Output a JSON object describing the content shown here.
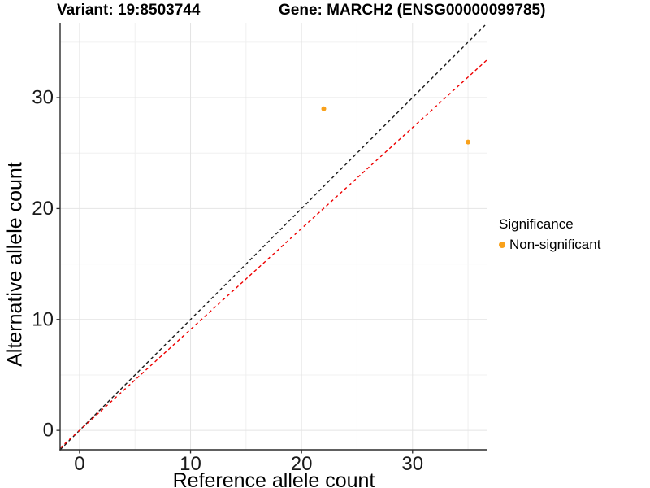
{
  "header": {
    "variant_title": "Variant: 19:8503744",
    "gene_title": "Gene: MARCH2 (ENSG00000099785)"
  },
  "axes": {
    "x_label": "Reference allele count",
    "y_label": "Alternative allele count"
  },
  "legend": {
    "title": "Significance",
    "items": [
      {
        "label": "Non-significant",
        "color": "#F9A11B"
      }
    ]
  },
  "chart_data": {
    "type": "scatter",
    "title": "Variant: 19:8503744 | Gene: MARCH2 (ENSG00000099785)",
    "xlabel": "Reference allele count",
    "ylabel": "Alternative allele count",
    "xlim": [
      -1.75,
      36.75
    ],
    "ylim": [
      -1.75,
      36.75
    ],
    "x_major_ticks": [
      0,
      10,
      20,
      30
    ],
    "y_major_ticks": [
      0,
      10,
      20,
      30
    ],
    "minor_ticks": [
      5,
      15,
      25,
      35
    ],
    "grid": true,
    "legend_position": "right",
    "series": [
      {
        "name": "Non-significant",
        "color": "#F9A11B",
        "points": [
          {
            "x": 22,
            "y": 29
          },
          {
            "x": 35,
            "y": 26
          }
        ]
      }
    ],
    "reference_lines": [
      {
        "name": "identity-line",
        "slope": 1,
        "intercept": 0,
        "color": "#1A1A1A",
        "style": "dashed"
      },
      {
        "name": "expected-ratio-line",
        "slope": 0.91,
        "intercept": 0,
        "color": "#EE0000",
        "style": "dashed"
      }
    ],
    "colors": {
      "axis": "#2B2B2B",
      "tick_label": "#1A1A1A",
      "grid_major": "#E4E4E4",
      "grid_minor": "#F0F0F0",
      "background": "#FFFFFF"
    }
  }
}
